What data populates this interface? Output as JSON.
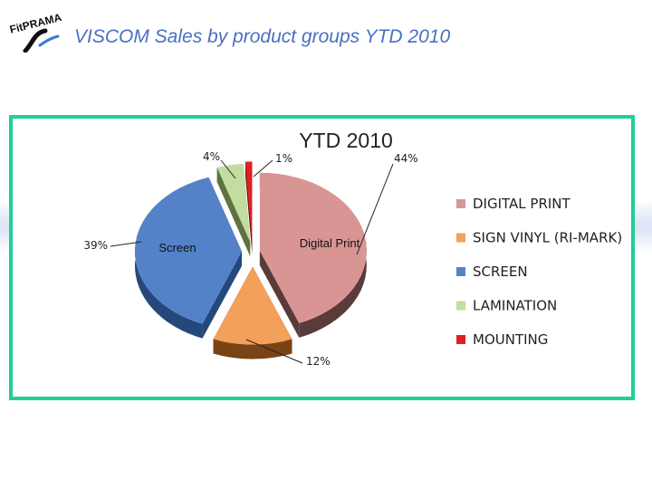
{
  "slide": {
    "title": "VISCOM Sales by product groups YTD 2010",
    "logo_text": "FitPRAMA"
  },
  "colors": {
    "title": "#4a6fc4",
    "frame": "#1fcf98"
  },
  "chart_data": {
    "type": "pie",
    "style": "3d-exploded",
    "title": "YTD 2010",
    "legend_position": "right",
    "series": [
      {
        "name": "DIGITAL PRINT",
        "value": 44,
        "label": "44%",
        "inner_label": "Digital Print",
        "color": "#d99594",
        "dark": "#5b3a3a"
      },
      {
        "name": "SIGN VINYL (RI-MARK)",
        "value": 12,
        "label": "12%",
        "inner_label": "",
        "color": "#f2a05a",
        "dark": "#7a4316"
      },
      {
        "name": "SCREEN",
        "value": 39,
        "label": "39%",
        "inner_label": "Screen",
        "color": "#5482c8",
        "dark": "#24487c"
      },
      {
        "name": "LAMINATION",
        "value": 4,
        "label": "4%",
        "inner_label": "",
        "color": "#c3dca0",
        "dark": "#5d7340"
      },
      {
        "name": "MOUNTING",
        "value": 1,
        "label": "1%",
        "inner_label": "",
        "color": "#e02020",
        "dark": "#7a0b0b"
      }
    ]
  }
}
